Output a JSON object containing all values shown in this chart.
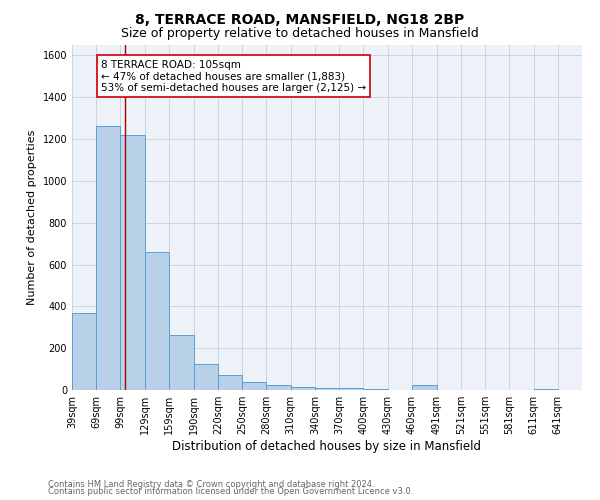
{
  "title": "8, TERRACE ROAD, MANSFIELD, NG18 2BP",
  "subtitle": "Size of property relative to detached houses in Mansfield",
  "xlabel": "Distribution of detached houses by size in Mansfield",
  "ylabel": "Number of detached properties",
  "footnote1": "Contains HM Land Registry data © Crown copyright and database right 2024.",
  "footnote2": "Contains public sector information licensed under the Open Government Licence v3.0.",
  "bar_labels": [
    "39sqm",
    "69sqm",
    "99sqm",
    "129sqm",
    "159sqm",
    "190sqm",
    "220sqm",
    "250sqm",
    "280sqm",
    "310sqm",
    "340sqm",
    "370sqm",
    "400sqm",
    "430sqm",
    "460sqm",
    "491sqm",
    "521sqm",
    "551sqm",
    "581sqm",
    "611sqm",
    "641sqm"
  ],
  "bar_values": [
    370,
    1265,
    1220,
    660,
    265,
    125,
    70,
    38,
    25,
    15,
    10,
    8,
    7,
    0,
    22,
    0,
    0,
    0,
    0,
    5,
    0
  ],
  "bin_edges": [
    39,
    69,
    99,
    129,
    159,
    190,
    220,
    250,
    280,
    310,
    340,
    370,
    400,
    430,
    460,
    491,
    521,
    551,
    581,
    611,
    641,
    671
  ],
  "bar_color": "#b8d0e8",
  "bar_edge_color": "#5a9fd4",
  "grid_color": "#c8d4e4",
  "bg_color": "#edf2f9",
  "annotation_text": "8 TERRACE ROAD: 105sqm\n← 47% of detached houses are smaller (1,883)\n53% of semi-detached houses are larger (2,125) →",
  "vline_x": 105,
  "vline_color": "#aa0000",
  "ylim": [
    0,
    1650
  ],
  "yticks": [
    0,
    200,
    400,
    600,
    800,
    1000,
    1200,
    1400,
    1600
  ],
  "footnote_color": "#666666",
  "title_fontsize": 10,
  "subtitle_fontsize": 9,
  "xlabel_fontsize": 8.5,
  "ylabel_fontsize": 8,
  "tick_fontsize": 7,
  "annot_fontsize": 7.5
}
